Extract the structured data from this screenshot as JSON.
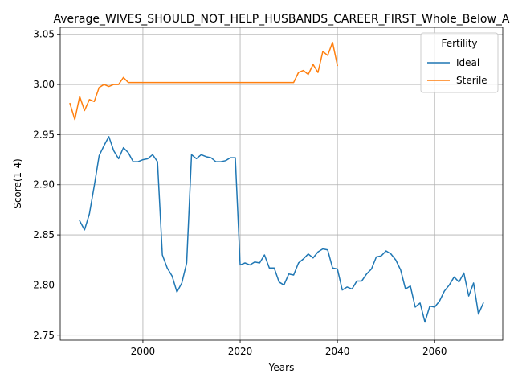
{
  "chart_data": {
    "type": "line",
    "title": "Average_WIVES_SHOULD_NOT_HELP_HUSBANDS_CAREER_FIRST_Whole_Below_A",
    "xlabel": "Years",
    "ylabel": "Score(1-4)",
    "xlim": [
      1983,
      2074
    ],
    "ylim": [
      2.745,
      3.057
    ],
    "xticks": [
      2000,
      2020,
      2040,
      2060
    ],
    "yticks": [
      2.75,
      2.8,
      2.85,
      2.9,
      2.95,
      3.0,
      3.05
    ],
    "grid": true,
    "legend": {
      "title": "Fertility",
      "placement": "top-right"
    },
    "series": [
      {
        "name": "Ideal",
        "color": "#1f77b4",
        "x": [
          1987,
          1988,
          1989,
          1990,
          1991,
          1992,
          1993,
          1994,
          1995,
          1996,
          1997,
          1998,
          1999,
          2000,
          2001,
          2002,
          2003,
          2004,
          2005,
          2006,
          2007,
          2008,
          2009,
          2010,
          2011,
          2012,
          2013,
          2014,
          2015,
          2016,
          2017,
          2018,
          2019,
          2020,
          2021,
          2022,
          2023,
          2024,
          2025,
          2026,
          2027,
          2028,
          2029,
          2030,
          2031,
          2032,
          2033,
          2034,
          2035,
          2036,
          2037,
          2038,
          2039,
          2040,
          2041,
          2042,
          2043,
          2044,
          2045,
          2046,
          2047,
          2048,
          2049,
          2050,
          2051,
          2052,
          2053,
          2054,
          2055,
          2056,
          2057,
          2058,
          2059,
          2060,
          2061,
          2062,
          2063,
          2064,
          2065,
          2066,
          2067,
          2068,
          2069,
          2070
        ],
        "y": [
          2.864,
          2.855,
          2.871,
          2.899,
          2.929,
          2.939,
          2.948,
          2.934,
          2.926,
          2.937,
          2.932,
          2.923,
          2.923,
          2.925,
          2.926,
          2.93,
          2.923,
          2.83,
          2.817,
          2.809,
          2.793,
          2.802,
          2.822,
          2.93,
          2.926,
          2.93,
          2.928,
          2.927,
          2.923,
          2.923,
          2.924,
          2.927,
          2.927,
          2.82,
          2.822,
          2.82,
          2.823,
          2.822,
          2.83,
          2.817,
          2.817,
          2.803,
          2.8,
          2.811,
          2.81,
          2.822,
          2.826,
          2.831,
          2.827,
          2.833,
          2.836,
          2.835,
          2.817,
          2.816,
          2.795,
          2.798,
          2.796,
          2.804,
          2.804,
          2.811,
          2.816,
          2.828,
          2.829,
          2.834,
          2.831,
          2.825,
          2.815,
          2.796,
          2.799,
          2.778,
          2.782,
          2.763,
          2.779,
          2.778,
          2.784,
          2.794,
          2.8,
          2.808,
          2.803,
          2.812,
          2.789,
          2.802,
          2.771,
          2.782
        ]
      },
      {
        "name": "Sterile",
        "color": "#ff7f0e",
        "x": [
          1985,
          1986,
          1987,
          1988,
          1989,
          1990,
          1991,
          1992,
          1993,
          1994,
          1995,
          1996,
          1997,
          1998,
          1999,
          2000,
          2001,
          2002,
          2003,
          2004,
          2005,
          2006,
          2007,
          2008,
          2009,
          2010,
          2011,
          2012,
          2013,
          2014,
          2015,
          2016,
          2017,
          2018,
          2019,
          2020,
          2021,
          2022,
          2023,
          2024,
          2025,
          2026,
          2027,
          2028,
          2029,
          2030,
          2031,
          2032,
          2033,
          2034,
          2035,
          2036,
          2037,
          2038,
          2039,
          2040
        ],
        "y": [
          2.981,
          2.965,
          2.988,
          2.974,
          2.985,
          2.983,
          2.997,
          3.0,
          2.998,
          3.0,
          3.0,
          3.007,
          3.002,
          3.002,
          3.002,
          3.002,
          3.002,
          3.002,
          3.002,
          3.002,
          3.002,
          3.002,
          3.002,
          3.002,
          3.002,
          3.002,
          3.002,
          3.002,
          3.002,
          3.002,
          3.002,
          3.002,
          3.002,
          3.002,
          3.002,
          3.002,
          3.002,
          3.002,
          3.002,
          3.002,
          3.002,
          3.002,
          3.002,
          3.002,
          3.002,
          3.002,
          3.002,
          3.012,
          3.014,
          3.01,
          3.02,
          3.012,
          3.033,
          3.029,
          3.042,
          3.019
        ]
      }
    ]
  }
}
